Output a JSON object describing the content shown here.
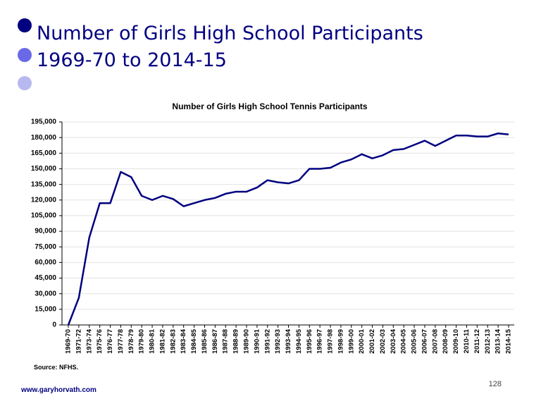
{
  "slide": {
    "title": "Number of Girls High School Participants",
    "subtitle": "1969-70 to 2014-15",
    "source": "Source: NFHS.",
    "page_number": "128",
    "website": "www.garyhorvath.com"
  },
  "chart_data": {
    "type": "line",
    "title": "Number of Girls High School Tennis Participants",
    "categories": [
      "1969-70",
      "1971-72",
      "1973-74",
      "1975-76",
      "1976-77",
      "1977-78",
      "1978-79",
      "1979-80",
      "1980-81",
      "1981-82",
      "1982-83",
      "1983-84",
      "1984-85",
      "1985-86",
      "1986-87",
      "1987-88",
      "1988-89",
      "1989-90",
      "1990-91",
      "1991-92",
      "1992-93",
      "1993-94",
      "1994-95",
      "1995-96",
      "1996-97",
      "1997-98",
      "1998-99",
      "1999-00",
      "2000-01",
      "2001-02",
      "2002-03",
      "2003-04",
      "2004-05",
      "2005-06",
      "2006-07",
      "2007-08",
      "2008-09",
      "2009-10",
      "2010-11",
      "2011-12",
      "2012-13",
      "2013-14",
      "2014-15"
    ],
    "values": [
      0,
      26000,
      84000,
      117000,
      117000,
      147000,
      142000,
      124000,
      120000,
      124000,
      121000,
      114000,
      117000,
      120000,
      122000,
      126000,
      128000,
      128000,
      132000,
      139000,
      137000,
      136000,
      139000,
      150000,
      150000,
      151000,
      156000,
      159000,
      164000,
      160000,
      163000,
      168000,
      169000,
      173000,
      177000,
      172000,
      177000,
      182000,
      182000,
      181000,
      181000,
      184000,
      183000
    ],
    "color": "#000080",
    "ylim": [
      0,
      195000
    ],
    "yticks": [
      0,
      {
        "value": 15000,
        "label": "15,000"
      },
      {
        "value": 30000,
        "label": "30,000"
      },
      {
        "value": 45000,
        "label": "45,000"
      },
      {
        "value": 60000,
        "label": "60,000"
      },
      {
        "value": 75000,
        "label": "75,000"
      },
      {
        "value": 90000,
        "label": "90,000"
      },
      {
        "value": 105000,
        "label": "105,000"
      },
      {
        "value": 120000,
        "label": "120,000"
      },
      {
        "value": 135000,
        "label": "135,000"
      },
      {
        "value": 150000,
        "label": "150,000"
      },
      {
        "value": 165000,
        "label": "165,000"
      },
      {
        "value": 180000,
        "label": "180,000"
      },
      {
        "value": 195000,
        "label": "195,000"
      }
    ],
    "grid": true
  }
}
